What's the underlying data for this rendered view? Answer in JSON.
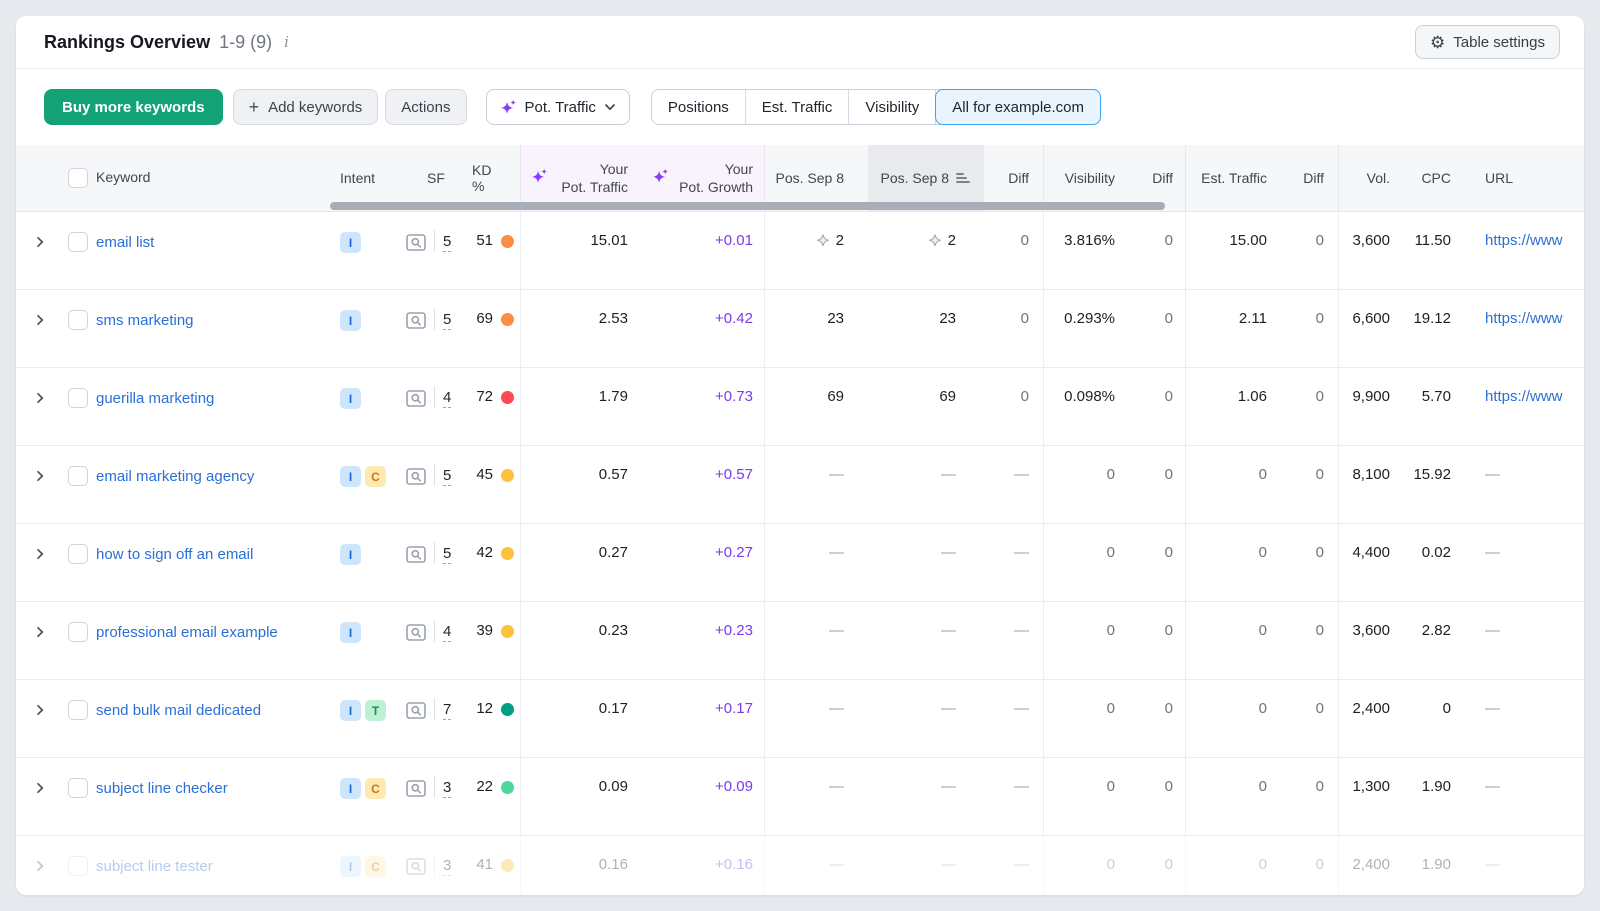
{
  "card": {
    "title": "Rankings Overview",
    "range": "1-9 (9)",
    "info_icon": "i",
    "table_settings_label": "Table settings"
  },
  "toolbar": {
    "buy_button": "Buy more keywords",
    "add_button": "Add keywords",
    "add_plus": "+",
    "actions_button": "Actions",
    "pot_traffic_dropdown": "Pot. Traffic",
    "segments": [
      "Positions",
      "Est. Traffic",
      "Visibility",
      "All for example.com"
    ],
    "selected_segment": "All for example.com"
  },
  "columns": [
    {
      "id": "keyword",
      "label": "Keyword"
    },
    {
      "id": "intent",
      "label": "Intent"
    },
    {
      "id": "sf",
      "label": "SF"
    },
    {
      "id": "kd",
      "label": "KD %"
    },
    {
      "id": "pot_traffic",
      "line1": "Your",
      "line2": "Pot. Traffic",
      "ai": true
    },
    {
      "id": "pot_growth",
      "line1": "Your",
      "line2": "Pot. Growth",
      "ai": true
    },
    {
      "id": "pos1",
      "label": "Pos. Sep 8"
    },
    {
      "id": "pos2",
      "label": "Pos. Sep 8",
      "sorted": true
    },
    {
      "id": "diff1",
      "label": "Diff"
    },
    {
      "id": "visibility",
      "label": "Visibility"
    },
    {
      "id": "diff2",
      "label": "Diff"
    },
    {
      "id": "est_traffic",
      "label": "Est. Traffic"
    },
    {
      "id": "diff3",
      "label": "Diff"
    },
    {
      "id": "volume",
      "label": "Vol."
    },
    {
      "id": "cpc",
      "label": "CPC"
    },
    {
      "id": "url",
      "label": "URL"
    }
  ],
  "rows": [
    {
      "keyword": "email list",
      "intents": [
        "I"
      ],
      "sf": "5",
      "kd": "51",
      "kd_level": "orange",
      "pot_traffic": "15.01",
      "pot_growth": "+0.01",
      "pos1": "2",
      "pos1_star": true,
      "pos2": "2",
      "pos2_star": true,
      "diff1": "0",
      "visibility": "3.816%",
      "diff2": "0",
      "est_traffic": "15.00",
      "diff3": "0",
      "volume": "3,600",
      "cpc": "11.50",
      "url": "https://www",
      "faded": false
    },
    {
      "keyword": "sms marketing",
      "intents": [
        "I"
      ],
      "sf": "5",
      "kd": "69",
      "kd_level": "orange",
      "pot_traffic": "2.53",
      "pot_growth": "+0.42",
      "pos1": "23",
      "pos1_star": false,
      "pos2": "23",
      "pos2_star": false,
      "diff1": "0",
      "visibility": "0.293%",
      "diff2": "0",
      "est_traffic": "2.11",
      "diff3": "0",
      "volume": "6,600",
      "cpc": "19.12",
      "url": "https://www",
      "faded": false
    },
    {
      "keyword": "guerilla marketing",
      "intents": [
        "I"
      ],
      "sf": "4",
      "kd": "72",
      "kd_level": "red",
      "pot_traffic": "1.79",
      "pot_growth": "+0.73",
      "pos1": "69",
      "pos1_star": false,
      "pos2": "69",
      "pos2_star": false,
      "diff1": "0",
      "visibility": "0.098%",
      "diff2": "0",
      "est_traffic": "1.06",
      "diff3": "0",
      "volume": "9,900",
      "cpc": "5.70",
      "url": "https://www",
      "faded": false
    },
    {
      "keyword": "email marketing agency",
      "intents": [
        "I",
        "C"
      ],
      "sf": "5",
      "kd": "45",
      "kd_level": "yellow",
      "pot_traffic": "0.57",
      "pot_growth": "+0.57",
      "pos1": "—",
      "pos1_star": false,
      "pos2": "—",
      "pos2_star": false,
      "diff1": "—",
      "visibility": "0",
      "diff2": "0",
      "est_traffic": "0",
      "diff3": "0",
      "volume": "8,100",
      "cpc": "15.92",
      "url": "—",
      "faded": false
    },
    {
      "keyword": "how to sign off an email",
      "intents": [
        "I"
      ],
      "sf": "5",
      "kd": "42",
      "kd_level": "yellow",
      "pot_traffic": "0.27",
      "pot_growth": "+0.27",
      "pos1": "—",
      "pos1_star": false,
      "pos2": "—",
      "pos2_star": false,
      "diff1": "—",
      "visibility": "0",
      "diff2": "0",
      "est_traffic": "0",
      "diff3": "0",
      "volume": "4,400",
      "cpc": "0.02",
      "url": "—",
      "faded": false
    },
    {
      "keyword": "professional email example",
      "intents": [
        "I"
      ],
      "sf": "4",
      "kd": "39",
      "kd_level": "yellow",
      "pot_traffic": "0.23",
      "pot_growth": "+0.23",
      "pos1": "—",
      "pos1_star": false,
      "pos2": "—",
      "pos2_star": false,
      "diff1": "—",
      "visibility": "0",
      "diff2": "0",
      "est_traffic": "0",
      "diff3": "0",
      "volume": "3,600",
      "cpc": "2.82",
      "url": "—",
      "faded": false
    },
    {
      "keyword": "send bulk mail dedicated",
      "intents": [
        "I",
        "T"
      ],
      "sf": "7",
      "kd": "12",
      "kd_level": "green",
      "pot_traffic": "0.17",
      "pot_growth": "+0.17",
      "pos1": "—",
      "pos1_star": false,
      "pos2": "—",
      "pos2_star": false,
      "diff1": "—",
      "visibility": "0",
      "diff2": "0",
      "est_traffic": "0",
      "diff3": "0",
      "volume": "2,400",
      "cpc": "0",
      "url": "—",
      "faded": false
    },
    {
      "keyword": "subject line checker",
      "intents": [
        "I",
        "C"
      ],
      "sf": "3",
      "kd": "22",
      "kd_level": "lightgreen",
      "pot_traffic": "0.09",
      "pot_growth": "+0.09",
      "pos1": "—",
      "pos1_star": false,
      "pos2": "—",
      "pos2_star": false,
      "diff1": "—",
      "visibility": "0",
      "diff2": "0",
      "est_traffic": "0",
      "diff3": "0",
      "volume": "1,300",
      "cpc": "1.90",
      "url": "—",
      "faded": false
    },
    {
      "keyword": "subject line tester",
      "intents": [
        "I",
        "C"
      ],
      "sf": "3",
      "kd": "41",
      "kd_level": "yellow",
      "pot_traffic": "0.16",
      "pot_growth": "+0.16",
      "pos1": "—",
      "pos1_star": false,
      "pos2": "—",
      "pos2_star": false,
      "diff1": "—",
      "visibility": "0",
      "diff2": "0",
      "est_traffic": "0",
      "diff3": "0",
      "volume": "2,400",
      "cpc": "1.90",
      "url": "—",
      "faded": true
    }
  ],
  "colors": {
    "accent_green": "#12a276",
    "link_blue": "#2a6fd6",
    "growth_purple": "#7c3aed",
    "ai_purple": "#8b3dff",
    "kd": {
      "orange": "#ff8c43",
      "red": "#ff4953",
      "yellow": "#fdc23c",
      "green": "#009f81",
      "lightgreen": "#4fd79f"
    }
  },
  "intent_styles": {
    "I": {
      "bg": "#cde6fc",
      "fg": "#1a6ad1"
    },
    "C": {
      "bg": "#fdeab2",
      "fg": "#c87a10"
    },
    "T": {
      "bg": "#bff0d4",
      "fg": "#0f9464"
    }
  }
}
